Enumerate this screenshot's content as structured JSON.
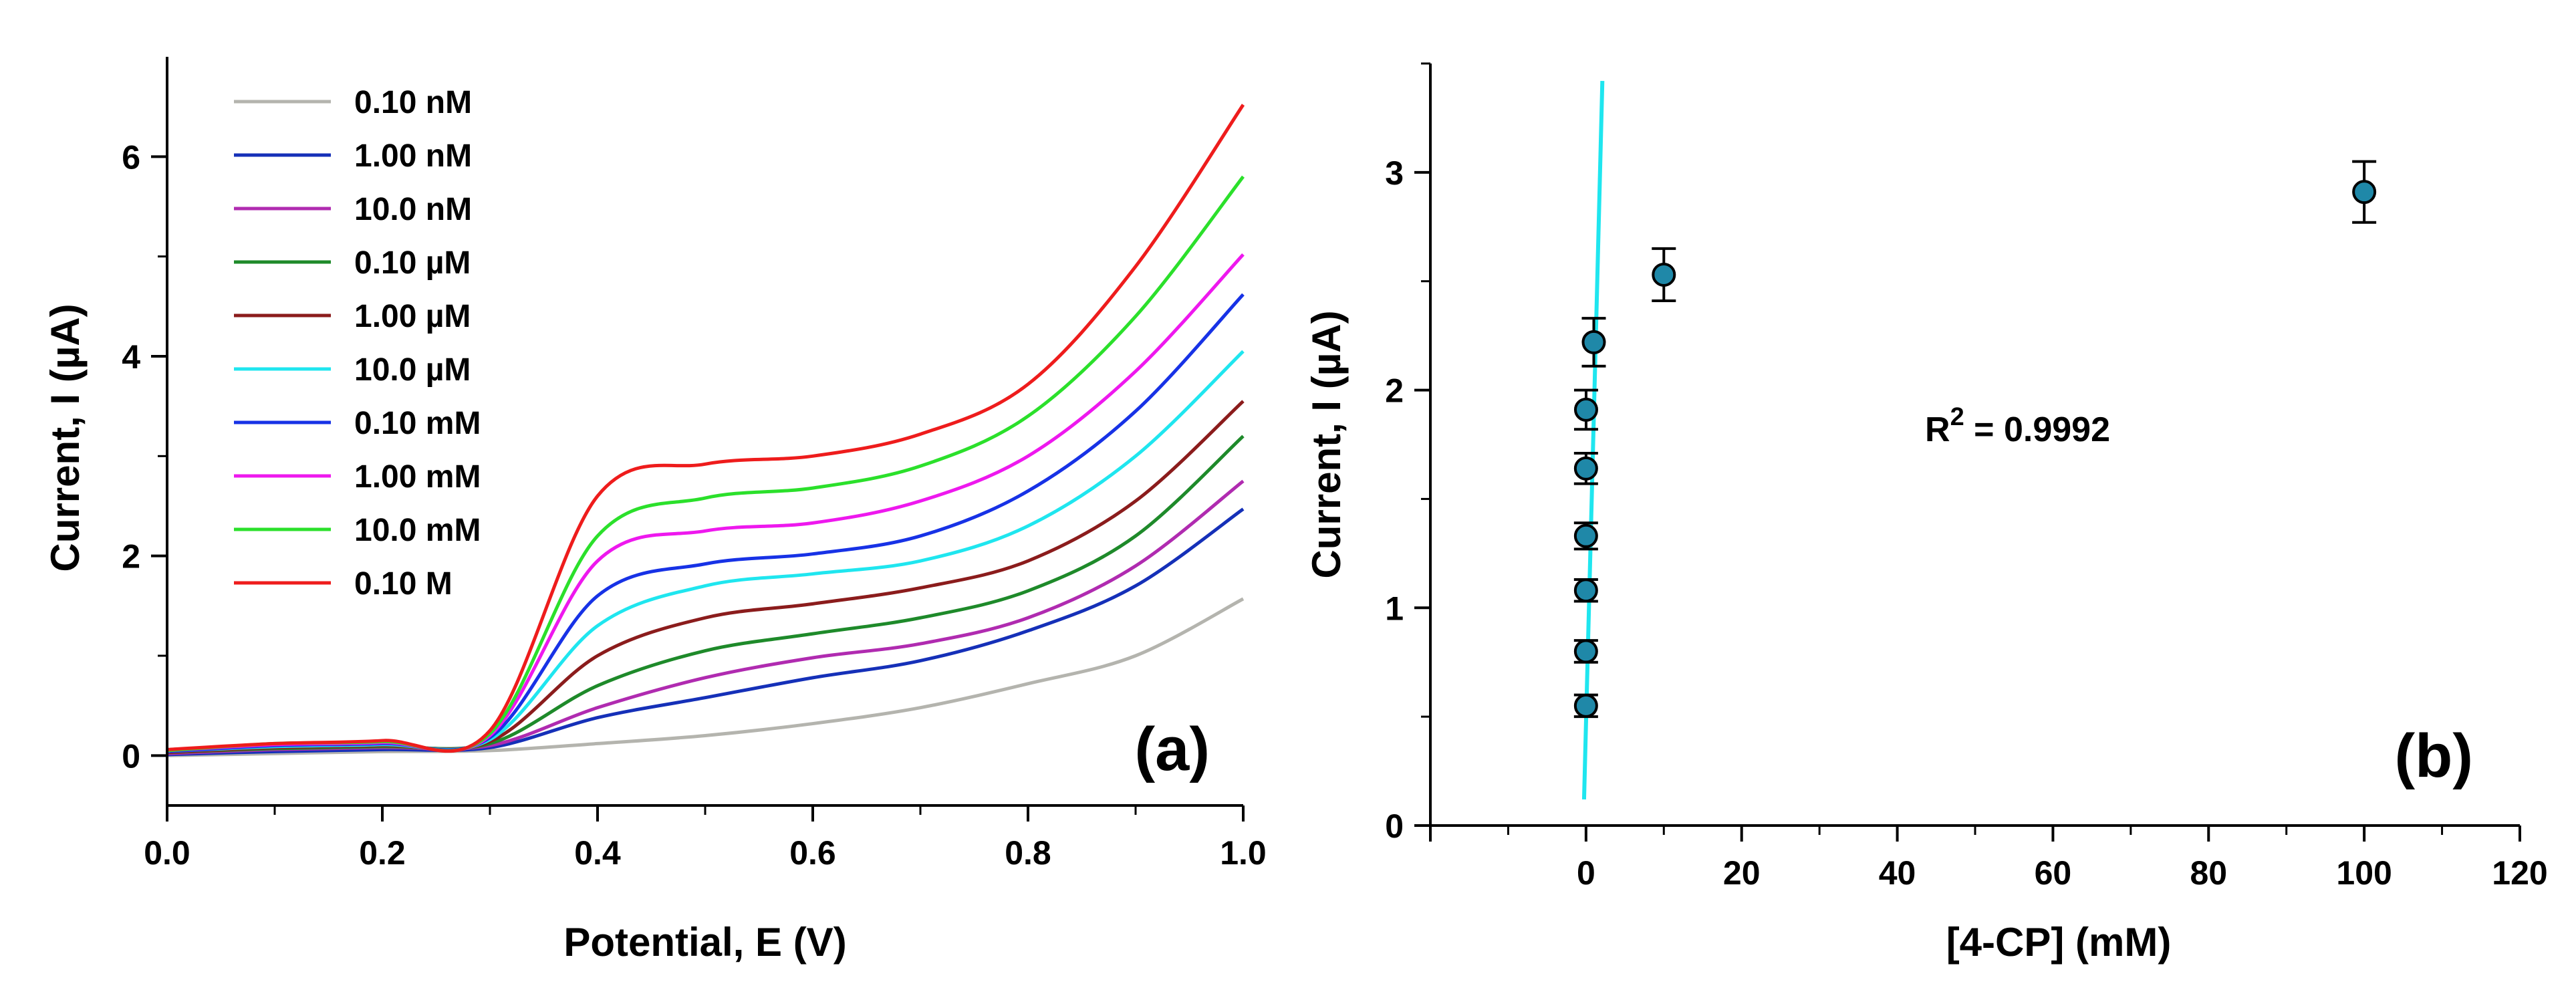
{
  "chart_data": [
    {
      "panel": "(a)",
      "type": "line",
      "xlabel": "Potential, E (V)",
      "ylabel": "Current, I (µA)",
      "xlim": [
        0.0,
        1.0
      ],
      "ylim": [
        -0.5,
        7.0
      ],
      "xticks": [
        "0.0",
        "0.2",
        "0.4",
        "0.6",
        "0.8",
        "1.0"
      ],
      "yticks": [
        "0",
        "2",
        "4",
        "6"
      ],
      "legend_position": "top-left",
      "series": [
        {
          "name": "0.10 nM",
          "color": "#b4b4ae",
          "x": [
            0,
            0.1,
            0.2,
            0.3,
            0.4,
            0.5,
            0.6,
            0.7,
            0.8,
            0.9,
            1.0
          ],
          "y": [
            0.0,
            0.02,
            0.04,
            0.05,
            0.12,
            0.2,
            0.32,
            0.48,
            0.72,
            1.0,
            1.57
          ]
        },
        {
          "name": "1.00 nM",
          "color": "#1530b8",
          "x": [
            0,
            0.1,
            0.2,
            0.3,
            0.4,
            0.5,
            0.6,
            0.7,
            0.8,
            0.9,
            1.0
          ],
          "y": [
            0.01,
            0.04,
            0.06,
            0.08,
            0.38,
            0.58,
            0.78,
            0.95,
            1.25,
            1.7,
            2.47
          ]
        },
        {
          "name": "10.0 nM",
          "color": "#b02bb0",
          "x": [
            0,
            0.1,
            0.2,
            0.3,
            0.4,
            0.5,
            0.6,
            0.7,
            0.8,
            0.9,
            1.0
          ],
          "y": [
            0.02,
            0.06,
            0.08,
            0.1,
            0.48,
            0.78,
            0.98,
            1.12,
            1.38,
            1.9,
            2.75
          ]
        },
        {
          "name": "0.10 µM",
          "color": "#1e8a2a",
          "x": [
            0,
            0.1,
            0.2,
            0.3,
            0.4,
            0.5,
            0.6,
            0.7,
            0.8,
            0.9,
            1.0
          ],
          "y": [
            0.03,
            0.07,
            0.09,
            0.12,
            0.7,
            1.05,
            1.22,
            1.38,
            1.65,
            2.2,
            3.2
          ]
        },
        {
          "name": "1.00 µM",
          "color": "#8b1c1c",
          "x": [
            0,
            0.1,
            0.2,
            0.3,
            0.4,
            0.5,
            0.6,
            0.7,
            0.8,
            0.9,
            1.0
          ],
          "y": [
            0.03,
            0.08,
            0.1,
            0.14,
            1.0,
            1.38,
            1.52,
            1.68,
            1.95,
            2.55,
            3.55
          ]
        },
        {
          "name": "10.0 µM",
          "color": "#1fe6ef",
          "x": [
            0,
            0.1,
            0.2,
            0.3,
            0.4,
            0.5,
            0.6,
            0.7,
            0.8,
            0.9,
            1.0
          ],
          "y": [
            0.04,
            0.09,
            0.11,
            0.16,
            1.3,
            1.7,
            1.82,
            1.95,
            2.3,
            3.0,
            4.05
          ]
        },
        {
          "name": "0.10 mM",
          "color": "#1732e6",
          "x": [
            0,
            0.1,
            0.2,
            0.3,
            0.4,
            0.5,
            0.6,
            0.7,
            0.8,
            0.9,
            1.0
          ],
          "y": [
            0.04,
            0.1,
            0.12,
            0.18,
            1.6,
            1.92,
            2.02,
            2.2,
            2.65,
            3.45,
            4.62
          ]
        },
        {
          "name": "1.00 mM",
          "color": "#ee18ee",
          "x": [
            0,
            0.1,
            0.2,
            0.3,
            0.4,
            0.5,
            0.6,
            0.7,
            0.8,
            0.9,
            1.0
          ],
          "y": [
            0.05,
            0.11,
            0.13,
            0.2,
            1.95,
            2.25,
            2.33,
            2.55,
            3.0,
            3.85,
            5.02
          ]
        },
        {
          "name": "10.0 mM",
          "color": "#2be02b",
          "x": [
            0,
            0.1,
            0.2,
            0.3,
            0.4,
            0.5,
            0.6,
            0.7,
            0.8,
            0.9,
            1.0
          ],
          "y": [
            0.05,
            0.12,
            0.14,
            0.22,
            2.2,
            2.58,
            2.68,
            2.9,
            3.4,
            4.4,
            5.8
          ]
        },
        {
          "name": "0.10 M",
          "color": "#ee1c1c",
          "x": [
            0,
            0.1,
            0.2,
            0.3,
            0.4,
            0.5,
            0.6,
            0.7,
            0.8,
            0.9,
            1.0
          ],
          "y": [
            0.06,
            0.12,
            0.15,
            0.25,
            2.6,
            2.92,
            3.0,
            3.22,
            3.72,
            4.9,
            6.52
          ]
        }
      ]
    },
    {
      "panel": "(b)",
      "type": "scatter",
      "xlabel": "[4-CP] (mM)",
      "ylabel": "Current, I (µA)",
      "xlim": [
        -20,
        120
      ],
      "ylim": [
        0,
        3.5
      ],
      "xticks": [
        "0",
        "20",
        "40",
        "60",
        "80",
        "100",
        "120"
      ],
      "yticks": [
        "0",
        "1",
        "2",
        "3"
      ],
      "annotation": {
        "prefix": "R",
        "superscript": "2",
        "suffix": " = 0.9992"
      },
      "marker_color": "#1f88a8",
      "points": [
        {
          "x": 1e-07,
          "y": 0.55,
          "err": 0.05
        },
        {
          "x": 1e-06,
          "y": 0.8,
          "err": 0.05
        },
        {
          "x": 1e-05,
          "y": 1.08,
          "err": 0.05
        },
        {
          "x": 0.0001,
          "y": 1.33,
          "err": 0.06
        },
        {
          "x": 0.001,
          "y": 1.64,
          "err": 0.07
        },
        {
          "x": 0.01,
          "y": 1.91,
          "err": 0.09
        },
        {
          "x": 1,
          "y": 2.22,
          "err": 0.11
        },
        {
          "x": 10,
          "y": 2.53,
          "err": 0.12
        },
        {
          "x": 100,
          "y": 2.91,
          "err": 0.14
        }
      ],
      "fit_line": {
        "color": "#1fe6ef",
        "x": [
          -0.25,
          2.1
        ],
        "y": [
          0.12,
          3.42
        ]
      }
    }
  ]
}
